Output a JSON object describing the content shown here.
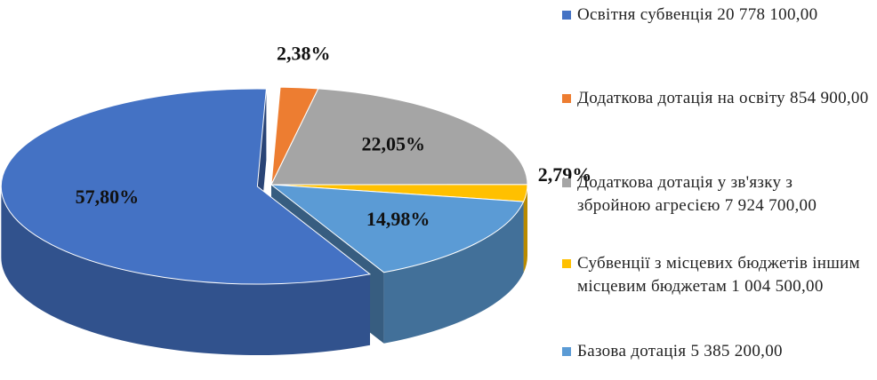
{
  "chart_data": {
    "type": "pie",
    "categories": [
      "Освітня субвенція 20 778 100,00",
      "Додаткова дотація на освіту 854 900,00",
      "Додаткова дотація у зв'язку з збройною агресією 7 924 700,00",
      "Субвенції з місцевих бюджетів іншим місцевим бюджетам 1 004 500,00",
      "Базова дотація 5 385 200,00"
    ],
    "values": [
      57.8,
      2.38,
      22.05,
      2.79,
      14.98
    ],
    "value_labels": [
      "57,80%",
      "2,38%",
      "22,05%",
      "2,79%",
      "14,98%"
    ],
    "colors": [
      "#4472c4",
      "#ed7d31",
      "#a5a5a5",
      "#ffc000",
      "#5b9bd5"
    ],
    "legend": "right"
  }
}
